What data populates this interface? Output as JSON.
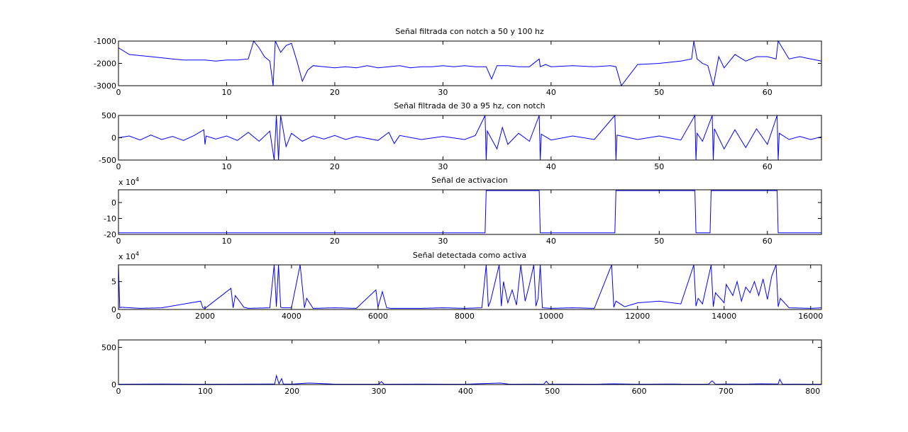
{
  "background": "#ffffff",
  "line_color": "#0000ff",
  "chart_data": [
    {
      "type": "line",
      "title": "Señal filtrada con notch a 50 y 100 hz",
      "xlim": [
        0,
        65
      ],
      "ylim": [
        -3000,
        -1000
      ],
      "xticks": [
        0,
        10,
        20,
        30,
        40,
        50,
        60
      ],
      "yticks": [
        -3000,
        -2000,
        -1000
      ],
      "ytick_labels": [
        "-3000",
        "-2000",
        "-1000"
      ],
      "y_multiplier": "",
      "grid": false,
      "series": [
        {
          "x": [
            0,
            1,
            2,
            3,
            4,
            5,
            6,
            7,
            8,
            9,
            10,
            11,
            12,
            12.5,
            13,
            13.5,
            14,
            14.3,
            14.5,
            15,
            15.5,
            16,
            16.5,
            17,
            17.5,
            18,
            19,
            20,
            21,
            22,
            23,
            24,
            25,
            26,
            27,
            28,
            29,
            30,
            31,
            32,
            33,
            34,
            34.5,
            35,
            36,
            37,
            38,
            38.9,
            39,
            39.5,
            40,
            42,
            44,
            45.5,
            46,
            46.5,
            48,
            50,
            52,
            53,
            53.2,
            53.5,
            54,
            54.5,
            55,
            55.5,
            56,
            57,
            58,
            59,
            60,
            60.8,
            61,
            62,
            63,
            64,
            65
          ],
          "y": [
            -1300,
            -1600,
            -1650,
            -1700,
            -1750,
            -1800,
            -1850,
            -1850,
            -1850,
            -1900,
            -1850,
            -1850,
            -1800,
            -1000,
            -1300,
            -1700,
            -1900,
            -3000,
            -1000,
            -1500,
            -1200,
            -1100,
            -1900,
            -2800,
            -2300,
            -2100,
            -2150,
            -2200,
            -2150,
            -2200,
            -2100,
            -2200,
            -2150,
            -2100,
            -2200,
            -2150,
            -2150,
            -2100,
            -2150,
            -2100,
            -2150,
            -2150,
            -2700,
            -2100,
            -2100,
            -2150,
            -2150,
            -1800,
            -2150,
            -2050,
            -2150,
            -2100,
            -2150,
            -2100,
            -2150,
            -3000,
            -2050,
            -2000,
            -1900,
            -1800,
            -1000,
            -1800,
            -2000,
            -2100,
            -3000,
            -1700,
            -2200,
            -1600,
            -1900,
            -1700,
            -1700,
            -1800,
            -1000,
            -1800,
            -1700,
            -1800,
            -1900
          ]
        }
      ]
    },
    {
      "type": "line",
      "title": "Señal filtrada de 30 a 95 hz, con notch",
      "xlim": [
        0,
        65
      ],
      "ylim": [
        -500,
        500
      ],
      "xticks": [
        0,
        10,
        20,
        30,
        40,
        50,
        60
      ],
      "yticks": [
        -500,
        0,
        500
      ],
      "ytick_labels": [
        "-500",
        "0",
        "500"
      ],
      "y_multiplier": "",
      "grid": false,
      "series": [
        {
          "x": [
            0,
            1,
            2,
            3,
            4,
            5,
            6,
            7,
            7.9,
            8,
            8.1,
            9,
            10,
            11,
            12,
            13,
            14,
            14.4,
            14.6,
            14.8,
            15,
            15.5,
            16,
            17,
            18,
            19,
            20,
            21,
            22,
            24,
            25,
            25.5,
            26,
            28,
            30,
            32,
            33,
            33.9,
            34,
            34.1,
            35,
            35.5,
            36,
            37,
            38,
            38.9,
            39,
            39.1,
            40,
            42,
            44,
            45.9,
            46,
            46.1,
            48,
            50,
            52,
            53.3,
            53.4,
            53.5,
            54,
            54.9,
            55,
            55.1,
            56,
            57,
            58,
            59,
            60,
            60.9,
            61,
            61.1,
            62,
            63,
            64,
            65
          ],
          "y": [
            0,
            40,
            -50,
            60,
            -40,
            30,
            -60,
            50,
            180,
            -150,
            40,
            -30,
            40,
            -60,
            120,
            -80,
            150,
            -600,
            600,
            -600,
            600,
            -200,
            100,
            -80,
            40,
            -30,
            50,
            -40,
            30,
            -60,
            120,
            -130,
            50,
            -40,
            30,
            -40,
            50,
            600,
            -600,
            150,
            -250,
            230,
            -150,
            100,
            -80,
            600,
            -600,
            80,
            -50,
            40,
            -40,
            600,
            -600,
            60,
            -40,
            40,
            -50,
            600,
            -600,
            100,
            -80,
            600,
            -600,
            200,
            -250,
            180,
            -220,
            200,
            -150,
            600,
            -600,
            100,
            -40,
            30,
            -40,
            20
          ]
        }
      ]
    },
    {
      "type": "line",
      "title": "Señal de activacion",
      "xlim": [
        0,
        65
      ],
      "ylim": [
        -20,
        8
      ],
      "xticks": [
        0,
        10,
        20,
        30,
        40,
        50,
        60
      ],
      "yticks": [
        -20,
        -10,
        0
      ],
      "ytick_labels": [
        "-20",
        "-10",
        "0"
      ],
      "y_multiplier": "x 10",
      "y_multiplier_exp": "4",
      "grid": false,
      "series": [
        {
          "x": [
            0,
            33.9,
            34.0,
            38.9,
            39.0,
            45.9,
            46.0,
            53.3,
            53.4,
            54.7,
            54.8,
            60.9,
            61.0,
            65
          ],
          "y": [
            -19,
            -19,
            7.5,
            7.5,
            -19,
            -19,
            7.5,
            7.5,
            -19,
            -19,
            7.5,
            7.5,
            -19,
            -19
          ]
        }
      ]
    },
    {
      "type": "line",
      "title": "Señal detectada como activa",
      "xlim": [
        0,
        16250
      ],
      "ylim": [
        0,
        8
      ],
      "xticks": [
        0,
        2000,
        4000,
        6000,
        8000,
        10000,
        12000,
        14000,
        16000
      ],
      "yticks": [
        0,
        5
      ],
      "ytick_labels": [
        "0",
        "5"
      ],
      "y_multiplier": "x 10",
      "y_multiplier_exp": "4",
      "grid": false,
      "series": [
        {
          "x": [
            0,
            30,
            60,
            500,
            1000,
            1900,
            1950,
            2000,
            2600,
            2650,
            2700,
            2900,
            3000,
            3500,
            3600,
            3650,
            3700,
            3750,
            3800,
            4000,
            4200,
            4300,
            4350,
            4500,
            5000,
            5500,
            5950,
            6000,
            6100,
            6200,
            6300,
            7000,
            7500,
            8000,
            8400,
            8500,
            8550,
            8600,
            8800,
            8850,
            8900,
            9000,
            9100,
            9200,
            9300,
            9400,
            9500,
            9600,
            9650,
            9700,
            9750,
            9800,
            10000,
            10500,
            11000,
            11400,
            11450,
            11500,
            11700,
            12000,
            12500,
            13000,
            13300,
            13350,
            13400,
            13500,
            13700,
            13750,
            13800,
            14000,
            14050,
            14200,
            14300,
            14400,
            14500,
            14600,
            14700,
            14800,
            14900,
            15000,
            15100,
            15200,
            15250,
            15300,
            15500,
            16000,
            16250
          ],
          "y": [
            8,
            0.3,
            0.4,
            0.2,
            0.3,
            1.5,
            0.3,
            0.2,
            3.8,
            0.3,
            2.5,
            0.4,
            0.2,
            0.3,
            8,
            0.5,
            8,
            0.4,
            0.3,
            0.3,
            8,
            0.3,
            2,
            0.2,
            0.3,
            0.2,
            3.5,
            0.4,
            3.2,
            0.3,
            0.2,
            0.2,
            0.3,
            0.2,
            0.3,
            8,
            0.5,
            1.5,
            8,
            0.6,
            5,
            1.2,
            3.5,
            0.8,
            8,
            1.5,
            4.5,
            8,
            0.6,
            2,
            8,
            0.3,
            0.2,
            0.3,
            0.2,
            8,
            0.4,
            1.5,
            0.5,
            1.2,
            1.5,
            1,
            8,
            0.6,
            2,
            1,
            8,
            0.5,
            3,
            1.2,
            4.5,
            2.5,
            5,
            1.5,
            4,
            3,
            5,
            2.5,
            5.5,
            1.8,
            6,
            8,
            0.5,
            2,
            0.3,
            0.2,
            0.3
          ]
        }
      ]
    },
    {
      "type": "line",
      "title": "",
      "xlim": [
        0,
        810
      ],
      "ylim": [
        0,
        600
      ],
      "xticks": [
        0,
        100,
        200,
        300,
        400,
        500,
        600,
        700,
        800
      ],
      "yticks": [
        0,
        500
      ],
      "ytick_labels": [
        "0",
        "500"
      ],
      "y_multiplier": "",
      "grid": false,
      "series": [
        {
          "x": [
            0,
            50,
            100,
            150,
            180,
            182,
            185,
            188,
            190,
            200,
            220,
            250,
            300,
            303,
            306,
            350,
            400,
            440,
            450,
            480,
            490,
            493,
            496,
            500,
            550,
            570,
            600,
            640,
            650,
            680,
            684,
            688,
            700,
            720,
            740,
            760,
            762,
            765,
            780,
            810
          ],
          "y": [
            5,
            8,
            5,
            6,
            8,
            120,
            10,
            80,
            8,
            6,
            20,
            5,
            6,
            40,
            5,
            6,
            5,
            20,
            5,
            6,
            5,
            45,
            5,
            6,
            5,
            10,
            5,
            8,
            5,
            6,
            50,
            5,
            8,
            5,
            10,
            8,
            70,
            5,
            6,
            5
          ]
        }
      ]
    }
  ]
}
